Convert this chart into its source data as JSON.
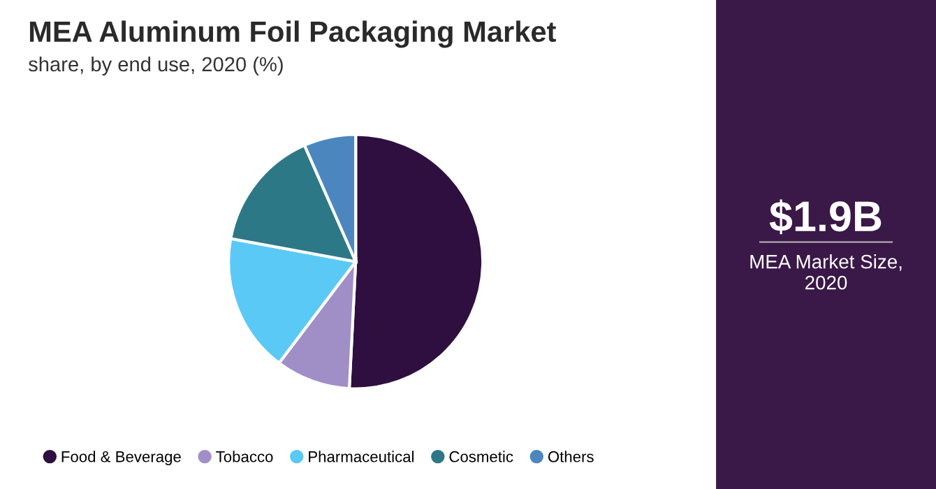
{
  "chart_data": [
    {
      "type": "pie",
      "title": "MEA Aluminum Foil Packaging Market",
      "subtitle": "share, by end use, 2020 (%)",
      "categories": [
        "Food & Beverage",
        "Tobacco",
        "Pharmaceutical",
        "Cosmetic",
        "Others"
      ],
      "values": [
        50.8,
        9.5,
        17.6,
        15.5,
        6.6
      ],
      "colors": [
        "#2e0f40",
        "#a08fc6",
        "#5bc9f6",
        "#2d7886",
        "#4b87be"
      ],
      "legend": "bottom"
    },
    {
      "type": "other",
      "title": "$1.9B",
      "subtitle": "MEA Market Size, 2020"
    }
  ]
}
